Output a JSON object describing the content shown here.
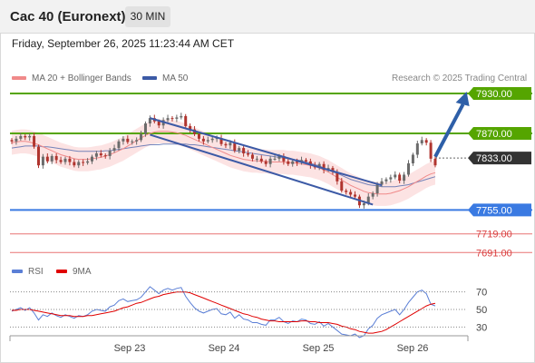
{
  "header": {
    "title": "Cac 40 (Euronext)",
    "timeframe": "30 MIN"
  },
  "datetime": "Friday, September 26, 2025 11:23:44 AM CET",
  "legend": {
    "ma20_label": "MA 20 + Bollinger Bands",
    "ma50_label": "MA 50",
    "copyright": "Research © 2025 Trading Central"
  },
  "rsi_legend": {
    "rsi_label": "RSI",
    "ma_label": "9MA"
  },
  "colors": {
    "ma20": "#f08a8a",
    "ma50": "#3c5aa6",
    "resistance": "#55a500",
    "support": "#3a7ae2",
    "secondary_support": "#e87474",
    "current": "#333333",
    "rsi": "#5b7fd6",
    "rsi_ma": "#e00000",
    "arrow": "#2e5fa8"
  },
  "chart_data": [
    {
      "type": "candlestick",
      "title": "Cac 40 (Euronext)",
      "x_tick_labels": [
        "Sep 23",
        "Sep 24",
        "Sep 25",
        "Sep 26"
      ],
      "ylim": [
        7675,
        7945
      ],
      "current_price": 7833.0,
      "levels": [
        {
          "label": "7930.00",
          "value": 7930.0,
          "kind": "resistance"
        },
        {
          "label": "7870.00",
          "value": 7870.0,
          "kind": "resistance"
        },
        {
          "label": "7833.00",
          "value": 7833.0,
          "kind": "current"
        },
        {
          "label": "7755.00",
          "value": 7755.0,
          "kind": "support"
        },
        {
          "label": "7719.00",
          "value": 7719.0,
          "kind": "secondary_support"
        },
        {
          "label": "7691.00",
          "value": 7691.0,
          "kind": "secondary_support"
        }
      ],
      "close_series": [
        7858,
        7862,
        7866,
        7864,
        7866,
        7850,
        7822,
        7835,
        7828,
        7836,
        7830,
        7827,
        7832,
        7827,
        7822,
        7827,
        7826,
        7828,
        7835,
        7840,
        7837,
        7836,
        7844,
        7848,
        7858,
        7862,
        7857,
        7858,
        7860,
        7869,
        7885,
        7893,
        7888,
        7882,
        7890,
        7893,
        7892,
        7894,
        7896,
        7881,
        7876,
        7869,
        7862,
        7858,
        7860,
        7862,
        7863,
        7854,
        7852,
        7856,
        7844,
        7848,
        7840,
        7838,
        7832,
        7832,
        7828,
        7824,
        7832,
        7832,
        7836,
        7828,
        7824,
        7828,
        7826,
        7830,
        7828,
        7822,
        7819,
        7824,
        7815,
        7818,
        7812,
        7798,
        7784,
        7782,
        7778,
        7775,
        7762,
        7765,
        7775,
        7780,
        7793,
        7798,
        7801,
        7804,
        7808,
        7799,
        7808,
        7825,
        7838,
        7855,
        7860,
        7856,
        7832,
        7822
      ],
      "ma20_series": [
        7856,
        7857,
        7858,
        7858,
        7857,
        7855,
        7853,
        7850,
        7847,
        7844,
        7841,
        7838,
        7836,
        7834,
        7832,
        7831,
        7831,
        7831,
        7832,
        7833,
        7834,
        7836,
        7838,
        7841,
        7844,
        7847,
        7851,
        7855,
        7859,
        7863,
        7867,
        7870,
        7872,
        7873,
        7873,
        7873,
        7872,
        7871,
        7869,
        7867,
        7864,
        7861,
        7858,
        7855,
        7852,
        7849,
        7846,
        7843,
        7840,
        7837,
        7835,
        7833,
        7831,
        7830,
        7829,
        7829,
        7828,
        7828,
        7827,
        7827,
        7827,
        7827,
        7826,
        7826,
        7825,
        7824,
        7823,
        7822,
        7820,
        7818,
        7815,
        7812,
        7808,
        7804,
        7800,
        7796,
        7792,
        7789,
        7786,
        7783,
        7781,
        7780,
        7779,
        7779,
        7779,
        7780,
        7782,
        7784,
        7787,
        7790,
        7794,
        7798,
        7802,
        7806,
        7809,
        7811
      ],
      "ma50_series": [
        7848,
        7849,
        7850,
        7851,
        7851,
        7851,
        7851,
        7850,
        7850,
        7849,
        7848,
        7847,
        7846,
        7845,
        7844,
        7843,
        7843,
        7843,
        7843,
        7843,
        7843,
        7844,
        7844,
        7845,
        7846,
        7847,
        7848,
        7849,
        7850,
        7851,
        7852,
        7853,
        7853,
        7853,
        7854,
        7854,
        7854,
        7854,
        7854,
        7854,
        7853,
        7853,
        7852,
        7851,
        7850,
        7849,
        7848,
        7847,
        7846,
        7845,
        7844,
        7843,
        7842,
        7841,
        7840,
        7839,
        7838,
        7837,
        7836,
        7835,
        7834,
        7833,
        7832,
        7831,
        7830,
        7829,
        7827,
        7825,
        7823,
        7821,
        7818,
        7815,
        7812,
        7810,
        7807,
        7804,
        7801,
        7799,
        7797,
        7795,
        7793,
        7792,
        7791,
        7790,
        7790,
        7790,
        7790,
        7791,
        7792,
        7793,
        7795,
        7797,
        7799,
        7801,
        7803,
        7805
      ],
      "bollinger_band_halfwidth": 18,
      "channel": {
        "upper": [
          {
            "x": 31,
            "y": 7893
          },
          {
            "x": 83,
            "y": 7792
          }
        ],
        "lower": [
          {
            "x": 31,
            "y": 7868
          },
          {
            "x": 81,
            "y": 7763
          }
        ]
      },
      "forecast_arrow": {
        "from": {
          "x": 95,
          "y": 7835
        },
        "to": {
          "x": 100,
          "y": 7930
        }
      }
    },
    {
      "type": "line",
      "title": "RSI",
      "series": [
        {
          "name": "RSI",
          "values": [
            48,
            50,
            52,
            49,
            52,
            46,
            38,
            44,
            42,
            46,
            43,
            41,
            44,
            42,
            40,
            43,
            42,
            44,
            48,
            50,
            49,
            48,
            53,
            55,
            60,
            62,
            59,
            60,
            61,
            64,
            70,
            76,
            72,
            68,
            72,
            74,
            72,
            74,
            75,
            65,
            58,
            52,
            48,
            46,
            48,
            50,
            51,
            45,
            44,
            47,
            40,
            44,
            39,
            38,
            35,
            35,
            33,
            32,
            38,
            38,
            41,
            36,
            34,
            37,
            36,
            39,
            38,
            34,
            33,
            36,
            31,
            34,
            30,
            26,
            22,
            21,
            20,
            22,
            18,
            20,
            28,
            32,
            40,
            44,
            46,
            48,
            50,
            44,
            50,
            58,
            64,
            70,
            72,
            68,
            56,
            54
          ]
        },
        {
          "name": "9MA",
          "values": [
            49,
            49,
            50,
            50,
            50,
            49,
            48,
            47,
            46,
            45,
            44,
            43,
            43,
            43,
            42,
            42,
            42,
            43,
            43,
            44,
            45,
            46,
            47,
            48,
            50,
            52,
            53,
            55,
            57,
            58,
            60,
            62,
            64,
            65,
            67,
            68,
            69,
            70,
            70,
            70,
            69,
            67,
            65,
            63,
            61,
            59,
            57,
            55,
            53,
            51,
            49,
            47,
            45,
            44,
            42,
            41,
            39,
            38,
            37,
            37,
            36,
            36,
            36,
            36,
            36,
            37,
            37,
            36,
            36,
            35,
            35,
            35,
            34,
            33,
            31,
            30,
            28,
            27,
            25,
            24,
            23,
            23,
            24,
            25,
            27,
            30,
            33,
            36,
            39,
            42,
            45,
            48,
            51,
            54,
            56,
            57
          ]
        }
      ],
      "ylim": [
        20,
        80
      ],
      "y_ticks": [
        70,
        50,
        30
      ],
      "x_tick_labels": [
        "Sep 23",
        "Sep 24",
        "Sep 25",
        "Sep 26"
      ]
    }
  ]
}
